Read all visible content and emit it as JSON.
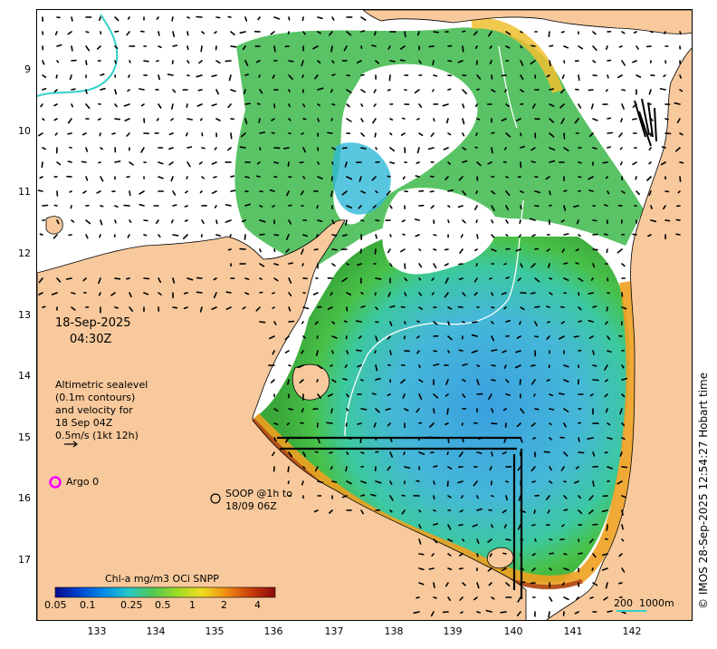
{
  "map": {
    "date": "18-Sep-2025",
    "time": "04:30Z",
    "legend_altimetry": [
      "Altimetric sealevel",
      "(0.1m contours)",
      "and velocity for",
      "18 Sep 04Z",
      "0.5m/s (1kt 12h)"
    ],
    "argo_label": "Argo 0",
    "soop_label": [
      "SOOP @1h to",
      "18/09 06Z"
    ],
    "credit": "© IMOS 28-Sep-2025 12:54:27 Hobart time",
    "colorbar": {
      "title": "Chl-a mg/m3 OCi SNPP",
      "ticks": [
        "0.05",
        "0.1",
        "0.25",
        "0.5",
        "1",
        "2",
        "4"
      ],
      "colors": [
        "#0a0a8c",
        "#0046d2",
        "#008ce6",
        "#28c8c8",
        "#50c850",
        "#a0dc28",
        "#f0dc1e",
        "#f08c14",
        "#c83c0a",
        "#8c0a0a"
      ]
    },
    "scale_bar": {
      "left": "200",
      "right": "1000m"
    },
    "lat_ticks": [
      "9",
      "10",
      "11",
      "12",
      "13",
      "14",
      "15",
      "16",
      "17"
    ],
    "lon_ticks": [
      "133",
      "134",
      "135",
      "136",
      "137",
      "138",
      "139",
      "140",
      "141",
      "142"
    ],
    "colors": {
      "land": "#f8c99c",
      "cloud": "#ffffff",
      "argo": "#ff00ff",
      "contour": "#ffffff",
      "shelf_edge": "#30d0c8"
    }
  }
}
